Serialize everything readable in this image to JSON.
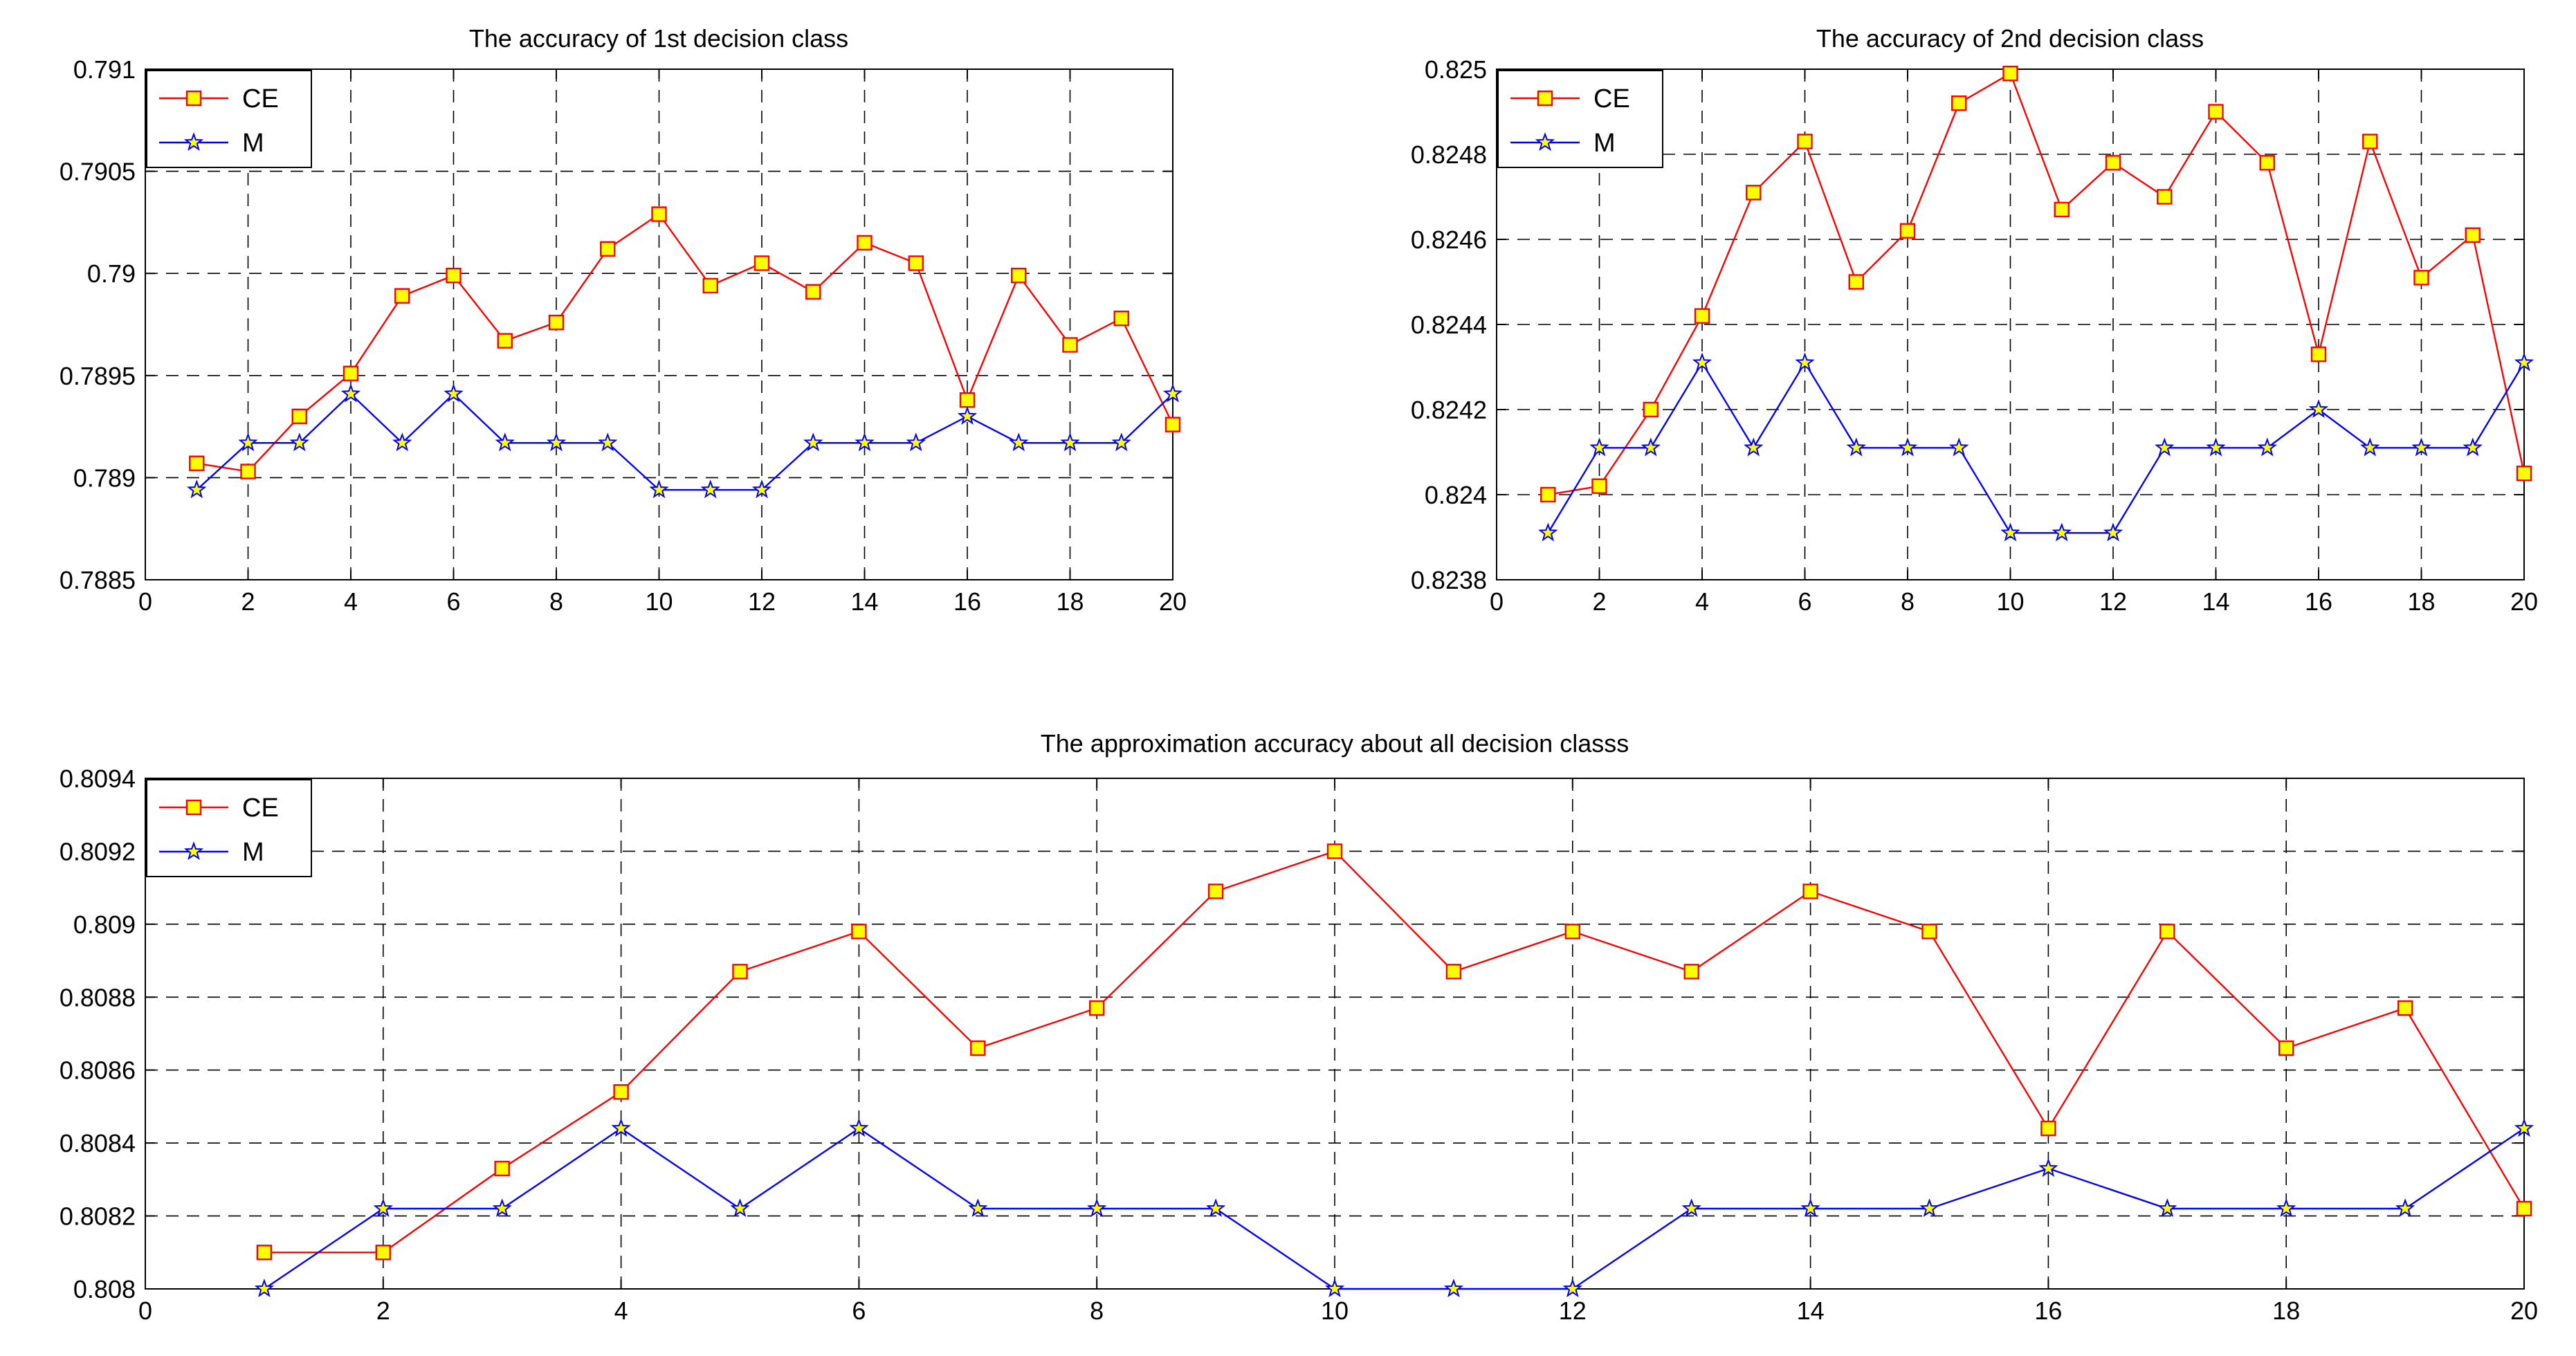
{
  "chart_data": [
    {
      "id": "chart1",
      "type": "line",
      "title": "The accuracy of 1st decision class",
      "xlabel": "",
      "ylabel": "",
      "xlim": [
        0,
        20
      ],
      "ylim": [
        0.7885,
        0.791
      ],
      "grid": true,
      "legend_position": "top-left",
      "x_ticks": [
        "0",
        "2",
        "4",
        "6",
        "8",
        "10",
        "12",
        "14",
        "16",
        "18",
        "20"
      ],
      "y_ticks": [
        "0.7885",
        "0.789",
        "0.7895",
        "0.79",
        "0.7905",
        "0.791"
      ],
      "x": [
        1,
        2,
        3,
        4,
        5,
        6,
        7,
        8,
        9,
        10,
        11,
        12,
        13,
        14,
        15,
        16,
        17,
        18,
        19,
        20
      ],
      "series": [
        {
          "name": "CE",
          "color": "#ff0000",
          "marker": "square",
          "values": [
            0.78907,
            0.78903,
            0.7893,
            0.78951,
            0.78989,
            0.78999,
            0.78967,
            0.78976,
            0.79012,
            0.79029,
            0.78994,
            0.79005,
            0.78991,
            0.79015,
            0.79005,
            0.78938,
            0.78999,
            0.78965,
            0.78978,
            0.78926
          ]
        },
        {
          "name": "M",
          "color": "#0000ff",
          "marker": "star",
          "values": [
            0.78894,
            0.78917,
            0.78917,
            0.78941,
            0.78917,
            0.78941,
            0.78917,
            0.78917,
            0.78917,
            0.78894,
            0.78894,
            0.78894,
            0.78917,
            0.78917,
            0.78917,
            0.7893,
            0.78917,
            0.78917,
            0.78917,
            0.78941
          ]
        }
      ]
    },
    {
      "id": "chart2",
      "type": "line",
      "title": "The accuracy of 2nd decision class",
      "xlabel": "",
      "ylabel": "",
      "xlim": [
        0,
        20
      ],
      "ylim": [
        0.8238,
        0.825
      ],
      "grid": true,
      "legend_position": "top-left",
      "x_ticks": [
        "0",
        "2",
        "4",
        "6",
        "8",
        "10",
        "12",
        "14",
        "16",
        "18",
        "20"
      ],
      "y_ticks": [
        "0.8238",
        "0.824",
        "0.8242",
        "0.8244",
        "0.8246",
        "0.8248",
        "0.825"
      ],
      "x": [
        1,
        2,
        3,
        4,
        5,
        6,
        7,
        8,
        9,
        10,
        11,
        12,
        13,
        14,
        15,
        16,
        17,
        18,
        19,
        20
      ],
      "series": [
        {
          "name": "CE",
          "color": "#ff0000",
          "marker": "square",
          "values": [
            0.824,
            0.82402,
            0.8242,
            0.82442,
            0.82471,
            0.82483,
            0.8245,
            0.82462,
            0.82492,
            0.82499,
            0.82467,
            0.82478,
            0.8247,
            0.8249,
            0.82478,
            0.82433,
            0.82483,
            0.82451,
            0.82461,
            0.82405
          ]
        },
        {
          "name": "M",
          "color": "#0000ff",
          "marker": "star",
          "values": [
            0.82391,
            0.82411,
            0.82411,
            0.82431,
            0.82411,
            0.82431,
            0.82411,
            0.82411,
            0.82411,
            0.82391,
            0.82391,
            0.82391,
            0.82411,
            0.82411,
            0.82411,
            0.8242,
            0.82411,
            0.82411,
            0.82411,
            0.82431
          ]
        }
      ]
    },
    {
      "id": "chart3",
      "type": "line",
      "title": "The approximation accuracy about all decision classs",
      "xlabel": "",
      "ylabel": "",
      "xlim": [
        0,
        20
      ],
      "ylim": [
        0.808,
        0.8094
      ],
      "grid": true,
      "legend_position": "top-left",
      "x_ticks": [
        "0",
        "2",
        "4",
        "6",
        "8",
        "10",
        "12",
        "14",
        "16",
        "18",
        "20"
      ],
      "y_ticks": [
        "0.808",
        "0.8082",
        "0.8084",
        "0.8086",
        "0.8088",
        "0.809",
        "0.8092",
        "0.8094"
      ],
      "x": [
        1,
        2,
        3,
        4,
        5,
        6,
        7,
        8,
        9,
        10,
        11,
        12,
        13,
        14,
        15,
        16,
        17,
        18,
        19,
        20
      ],
      "series": [
        {
          "name": "CE",
          "color": "#ff0000",
          "marker": "square",
          "values": [
            0.8081,
            0.8081,
            0.80833,
            0.80854,
            0.80887,
            0.80898,
            0.80866,
            0.80877,
            0.80909,
            0.8092,
            0.80887,
            0.80898,
            0.80887,
            0.80909,
            0.80898,
            0.80844,
            0.80898,
            0.80866,
            0.80877,
            0.80822
          ]
        },
        {
          "name": "M",
          "color": "#0000ff",
          "marker": "star",
          "values": [
            0.808,
            0.80822,
            0.80822,
            0.80844,
            0.80822,
            0.80844,
            0.80822,
            0.80822,
            0.80822,
            0.808,
            0.808,
            0.808,
            0.80822,
            0.80822,
            0.80822,
            0.80833,
            0.80822,
            0.80822,
            0.80822,
            0.80844
          ]
        }
      ]
    }
  ]
}
